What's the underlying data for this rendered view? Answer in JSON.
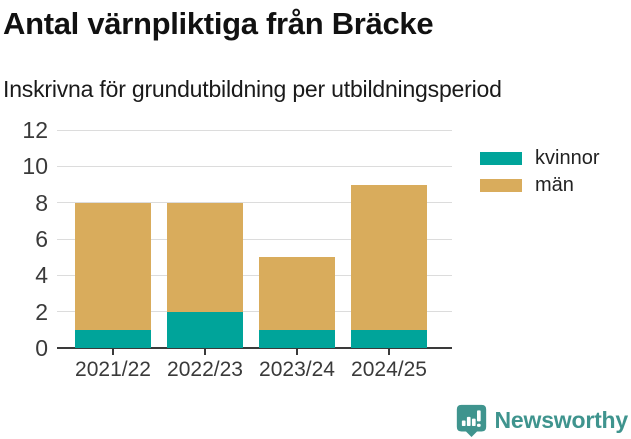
{
  "chart_data": {
    "type": "bar",
    "stacked": true,
    "title": "Antal värnpliktiga från Bräcke",
    "subtitle": "Inskrivna för grundutbildning per utbildningsperiod",
    "categories": [
      "2021/22",
      "2022/23",
      "2023/24",
      "2024/25"
    ],
    "series": [
      {
        "name": "kvinnor",
        "color": "#00a49a",
        "values": [
          1,
          2,
          1,
          1
        ]
      },
      {
        "name": "män",
        "color": "#d9ac5c",
        "values": [
          7,
          6,
          4,
          8
        ]
      }
    ],
    "stacked_totals": [
      8,
      8,
      5,
      9
    ],
    "xlabel": "",
    "ylabel": "",
    "ylim": [
      0,
      12
    ],
    "yticks": [
      0,
      2,
      4,
      6,
      8,
      10,
      12
    ],
    "grid": true,
    "legend_position": "right",
    "grid_color": "#dcdcdc",
    "axis_color": "#3a3a3a"
  },
  "branding": {
    "name": "Newsworthy",
    "color": "#3f948e",
    "icon": "bar-chart-speech-bubble"
  }
}
